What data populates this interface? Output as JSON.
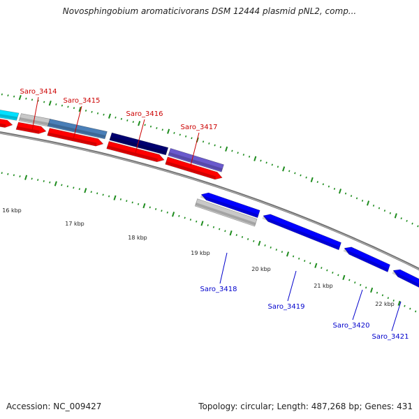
{
  "title": "Novosphingobium aromaticivorans DSM 12444 plasmid pNL2, comp...",
  "footer": {
    "accession": "Accession: NC_009427",
    "summary": "Topology: circular; Length: 487,268 bp; Genes: 431"
  },
  "colors": {
    "backbone": "#8a8a8a",
    "tick": "#1e8c1e",
    "forward_label": "#cc0000",
    "reverse_label": "#0000cc",
    "cds_red": "#ff0000",
    "cds_blue": "#0000ff",
    "cyan": "#00e0ff",
    "gray": "#c8c8c8",
    "steelblue": "#4a7fb8",
    "navy": "#000070",
    "purple": "#6a5acd"
  },
  "scale": {
    "tick_labels": [
      "16 kbp",
      "17 kbp",
      "18 kbp",
      "19 kbp",
      "20 kbp",
      "21 kbp",
      "22 kbp"
    ]
  },
  "genes": {
    "forward": [
      "Saro_3414",
      "Saro_3415",
      "Saro_3416",
      "Saro_3417"
    ],
    "reverse": [
      "Saro_3418",
      "Saro_3419",
      "Saro_3420",
      "Saro_3421"
    ]
  }
}
